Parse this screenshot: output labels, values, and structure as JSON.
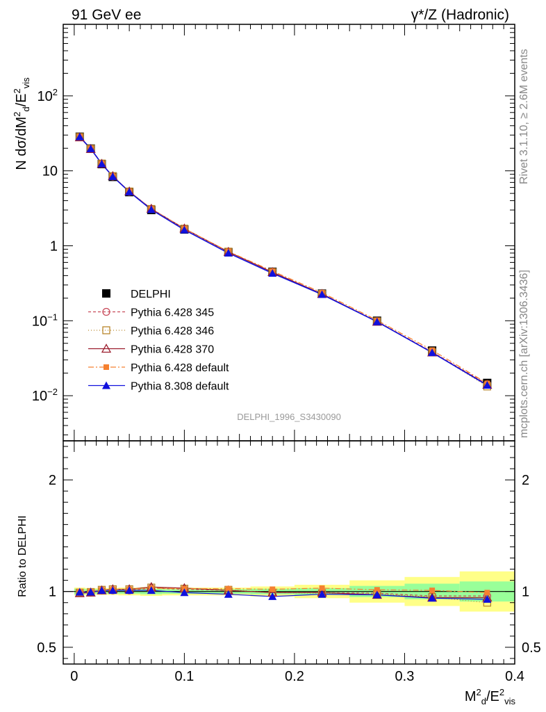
{
  "header": {
    "left_title": "91 GeV ee",
    "right_title": "γ*/Z (Hadronic)"
  },
  "side": {
    "rivet": "Rivet 3.1.10, ≥ 2.6M events",
    "mcplots": "mcplots.cern.ch [arXiv:1306.3436]"
  },
  "colors": {
    "DELPHI": "#000000",
    "Pythia 6.428 345": "#c84a5a",
    "Pythia 6.428 346": "#b8862b",
    "Pythia 6.428 370": "#9b1c2c",
    "Pythia 6.428 default": "#f58030",
    "Pythia 8.308 default": "#1010dd",
    "band_inner": "#99ff99",
    "band_outer": "#ffff88"
  },
  "chart_data": [
    {
      "panel": "main",
      "type": "line",
      "ylabel": "N dσ/dM²d/E²vis",
      "yscale": "log",
      "ylim": [
        0.0025,
        900
      ],
      "xlim": [
        -0.01,
        0.4
      ],
      "yticks": [
        "10^-2",
        "10^-1",
        "1",
        "10",
        "10^2"
      ],
      "watermark": "DELPHI_1996_S3430090",
      "legend_position": "middle-left",
      "x": [
        0.005,
        0.015,
        0.025,
        0.035,
        0.05,
        0.07,
        0.1,
        0.14,
        0.18,
        0.225,
        0.275,
        0.325,
        0.375
      ],
      "series": [
        {
          "name": "DELPHI",
          "marker": "square",
          "values": [
            28.5,
            19.8,
            12.3,
            8.3,
            5.2,
            3.0,
            1.65,
            0.82,
            0.45,
            0.23,
            0.1,
            0.04,
            0.0148
          ]
        },
        {
          "name": "Pythia 6.428 345",
          "marker": "circle-open",
          "dash": "4,3",
          "values": [
            28.2,
            19.6,
            12.4,
            8.4,
            5.25,
            3.08,
            1.68,
            0.83,
            0.445,
            0.228,
            0.0985,
            0.0385,
            0.0142
          ]
        },
        {
          "name": "Pythia 6.428 346",
          "marker": "square-open",
          "dash": "1,3",
          "values": [
            28.3,
            19.7,
            12.5,
            8.5,
            5.3,
            3.1,
            1.69,
            0.835,
            0.445,
            0.227,
            0.098,
            0.038,
            0.0133
          ]
        },
        {
          "name": "Pythia 6.428 370",
          "marker": "triangle-open",
          "dash": "",
          "values": [
            28.0,
            19.6,
            12.4,
            8.5,
            5.3,
            3.12,
            1.7,
            0.83,
            0.445,
            0.228,
            0.097,
            0.0378,
            0.014
          ]
        },
        {
          "name": "Pythia 6.428 default",
          "marker": "square-filled",
          "dash": "8,3,2,3",
          "values": [
            28.6,
            19.9,
            12.5,
            8.5,
            5.3,
            3.1,
            1.69,
            0.84,
            0.46,
            0.237,
            0.1015,
            0.0405,
            0.0146
          ]
        },
        {
          "name": "Pythia 8.308 default",
          "marker": "triangle-filled",
          "dash": "",
          "values": [
            28.4,
            19.7,
            12.4,
            8.4,
            5.25,
            3.04,
            1.63,
            0.8,
            0.43,
            0.224,
            0.097,
            0.0376,
            0.0138
          ]
        }
      ]
    },
    {
      "panel": "ratio",
      "type": "line",
      "ylabel": "Ratio to DELPHI",
      "xlabel": "M²d/E²vis",
      "ylim": [
        0.35,
        2.35
      ],
      "xlim": [
        -0.01,
        0.4
      ],
      "yticks": [
        "0.5",
        "1",
        "2"
      ],
      "xticks": [
        "0",
        "0.1",
        "0.2",
        "0.3",
        "0.4"
      ],
      "bands": [
        {
          "x": [
            0.0,
            0.01
          ],
          "inner": 0.025,
          "outer": 0.035
        },
        {
          "x": [
            0.01,
            0.02
          ],
          "inner": 0.02,
          "outer": 0.03
        },
        {
          "x": [
            0.02,
            0.03
          ],
          "inner": 0.02,
          "outer": 0.03
        },
        {
          "x": [
            0.03,
            0.04
          ],
          "inner": 0.02,
          "outer": 0.03
        },
        {
          "x": [
            0.04,
            0.06
          ],
          "inner": 0.02,
          "outer": 0.035
        },
        {
          "x": [
            0.06,
            0.08
          ],
          "inner": 0.025,
          "outer": 0.04
        },
        {
          "x": [
            0.08,
            0.12
          ],
          "inner": 0.02,
          "outer": 0.035
        },
        {
          "x": [
            0.12,
            0.16
          ],
          "inner": 0.02,
          "outer": 0.035
        },
        {
          "x": [
            0.16,
            0.2
          ],
          "inner": 0.025,
          "outer": 0.045
        },
        {
          "x": [
            0.2,
            0.25
          ],
          "inner": 0.03,
          "outer": 0.06
        },
        {
          "x": [
            0.25,
            0.3
          ],
          "inner": 0.05,
          "outer": 0.1
        },
        {
          "x": [
            0.3,
            0.35
          ],
          "inner": 0.07,
          "outer": 0.13
        },
        {
          "x": [
            0.35,
            0.4
          ],
          "inner": 0.09,
          "outer": 0.18
        }
      ],
      "x": [
        0.005,
        0.015,
        0.025,
        0.035,
        0.05,
        0.07,
        0.1,
        0.14,
        0.18,
        0.225,
        0.275,
        0.325,
        0.375
      ],
      "series": [
        {
          "name": "Pythia 6.428 345",
          "values": [
            0.99,
            0.99,
            1.01,
            1.01,
            1.01,
            1.03,
            1.02,
            1.01,
            0.99,
            0.99,
            0.985,
            0.96,
            0.96
          ]
        },
        {
          "name": "Pythia 6.428 346",
          "values": [
            0.99,
            0.995,
            1.015,
            1.02,
            1.02,
            1.035,
            1.025,
            1.015,
            0.99,
            0.985,
            0.98,
            0.95,
            0.9
          ]
        },
        {
          "name": "Pythia 6.428 370",
          "values": [
            0.985,
            0.99,
            1.01,
            1.02,
            1.02,
            1.04,
            1.03,
            1.01,
            0.99,
            0.99,
            0.97,
            0.945,
            0.945
          ]
        },
        {
          "name": "Pythia 6.428 default",
          "values": [
            1.0,
            1.0,
            1.015,
            1.02,
            1.02,
            1.03,
            1.025,
            1.025,
            1.02,
            1.03,
            1.015,
            1.01,
            0.99
          ]
        },
        {
          "name": "Pythia 8.308 default",
          "values": [
            0.995,
            0.995,
            1.01,
            1.01,
            1.01,
            1.01,
            0.99,
            0.975,
            0.955,
            0.975,
            0.97,
            0.94,
            0.93
          ]
        }
      ]
    }
  ]
}
